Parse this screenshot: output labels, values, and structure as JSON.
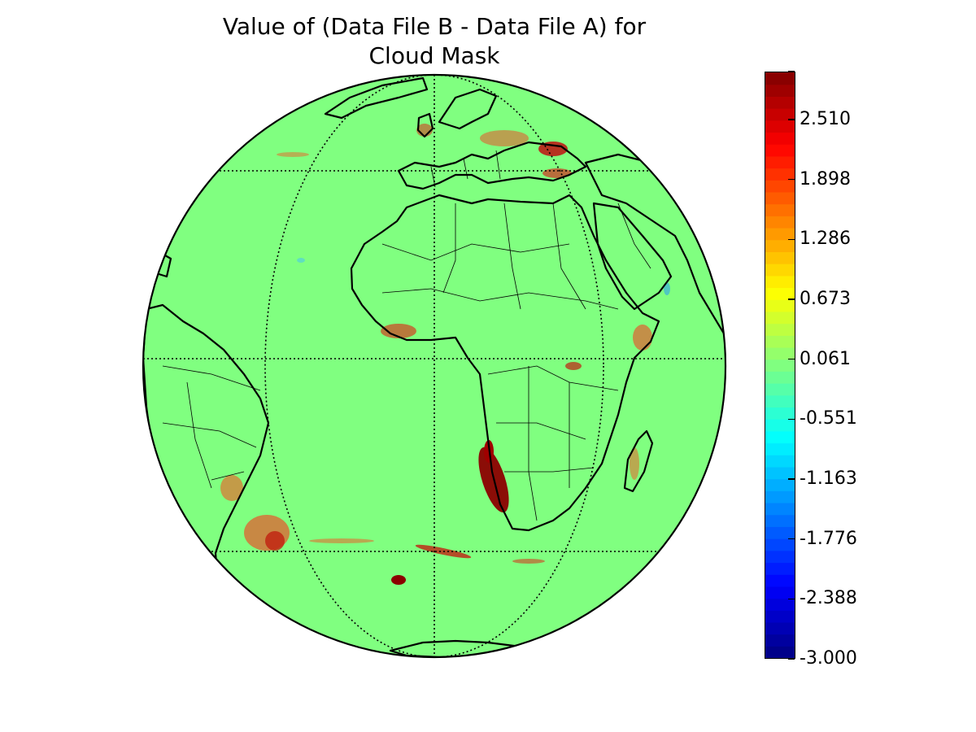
{
  "figure": {
    "title_line1": "Value of (Data File B - Data File A) for",
    "title_line2": "Cloud Mask"
  },
  "colorbar": {
    "min": -3.0,
    "max": 3.0,
    "colormap": "jet",
    "ticks": [
      {
        "value": 3.0,
        "label": ""
      },
      {
        "value": 2.51,
        "label": "2.510"
      },
      {
        "value": 1.898,
        "label": "1.898"
      },
      {
        "value": 1.286,
        "label": "1.286"
      },
      {
        "value": 0.673,
        "label": "0.673"
      },
      {
        "value": 0.061,
        "label": "0.061"
      },
      {
        "value": -0.551,
        "label": "-0.551"
      },
      {
        "value": -1.163,
        "label": "-1.163"
      },
      {
        "value": -1.776,
        "label": "-1.776"
      },
      {
        "value": -2.388,
        "label": "-2.388"
      },
      {
        "value": -3.0,
        "label": "-3.000"
      }
    ],
    "levels": 49
  },
  "map": {
    "projection": "orthographic",
    "background_value_color": "#80ff80",
    "coastline_color": "#000000",
    "graticule_style": "dotted"
  }
}
